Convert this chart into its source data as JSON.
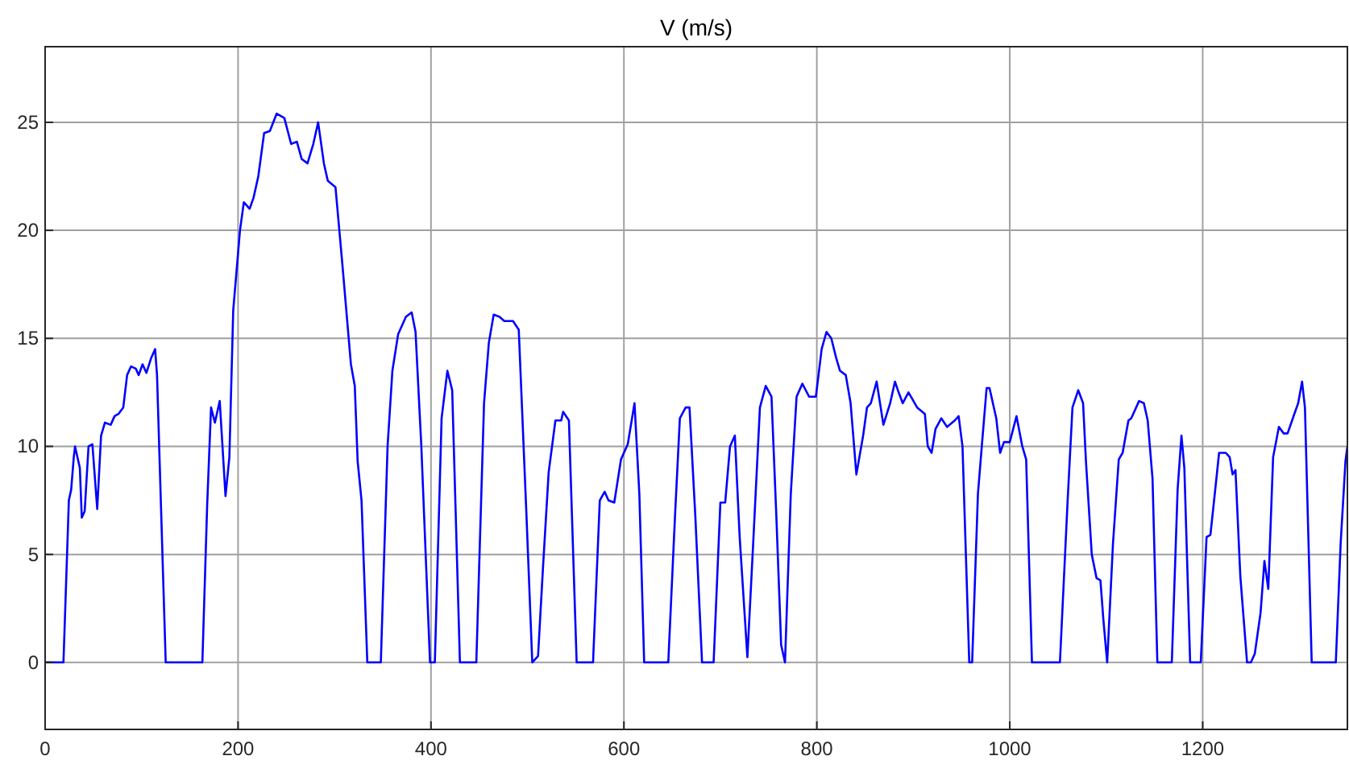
{
  "chart_data": {
    "type": "line",
    "title": "V (m/s)",
    "xlim": [
      0,
      1350
    ],
    "ylim": [
      -3.1,
      28.5
    ],
    "xticks": [
      0,
      200,
      400,
      600,
      800,
      1000,
      1200
    ],
    "yticks": [
      0,
      5,
      10,
      15,
      20,
      25
    ],
    "grid": true,
    "marker": "none",
    "line_style": "solid",
    "series": [
      {
        "color": "#0000ff",
        "x": [
          0,
          19,
          24.6,
          27,
          29.7,
          31,
          36,
          38,
          41,
          45,
          49,
          54,
          58,
          62,
          68,
          72,
          76,
          81,
          85,
          89,
          94,
          97,
          101,
          105,
          110,
          114,
          116,
          125,
          163,
          168,
          172,
          176,
          181,
          187,
          191,
          195,
          202,
          206,
          212,
          216,
          221,
          227,
          233,
          240,
          248,
          255,
          261,
          266,
          272,
          278,
          283,
          289,
          293,
          301,
          308,
          317,
          321,
          324,
          328,
          334,
          348,
          355,
          360,
          366,
          370,
          374,
          380,
          384,
          390,
          399,
          404,
          411,
          417,
          422,
          430,
          447,
          455,
          460,
          465,
          471,
          476,
          485,
          491,
          499,
          505,
          511,
          516,
          522,
          529,
          535,
          537,
          543,
          551,
          568,
          575,
          580,
          584,
          590,
          597,
          604,
          611,
          616,
          621,
          646,
          653,
          658,
          664,
          668,
          674,
          681,
          693,
          700,
          705,
          710,
          715,
          720,
          728,
          734,
          741,
          747,
          753,
          758,
          763,
          767,
          773,
          779,
          785,
          792,
          799,
          805,
          810,
          815,
          820,
          824,
          830,
          835,
          841,
          848,
          852,
          856,
          862,
          869,
          876,
          881,
          884,
          889,
          895,
          904,
          912,
          915,
          919,
          923,
          929,
          935,
          943,
          947,
          951,
          955,
          958,
          961,
          967,
          971,
          976,
          979,
          986,
          990,
          994,
          1000,
          1007,
          1013,
          1017,
          1023,
          1052,
          1060,
          1065,
          1071,
          1076,
          1079,
          1085,
          1090,
          1094,
          1097,
          1101,
          1107,
          1113,
          1117,
          1123,
          1126,
          1134,
          1139,
          1143,
          1148,
          1153,
          1168,
          1174,
          1178,
          1181,
          1187,
          1198,
          1204,
          1208,
          1213,
          1217,
          1224,
          1228,
          1231,
          1234,
          1239,
          1246,
          1250,
          1254,
          1260,
          1264,
          1268,
          1273,
          1279,
          1284,
          1288,
          1295,
          1299,
          1303,
          1306,
          1313,
          1338,
          1343,
          1348,
          1350
        ],
        "values": [
          0,
          0,
          7.5,
          8,
          9.5,
          10,
          9,
          6.7,
          7,
          10,
          10.1,
          7.1,
          10.5,
          11.1,
          11,
          11.4,
          11.5,
          11.8,
          13.3,
          13.7,
          13.6,
          13.3,
          13.8,
          13.4,
          14.1,
          14.5,
          13.3,
          0,
          0,
          7.3,
          11.8,
          11.1,
          12.1,
          7.7,
          9.5,
          16.3,
          20,
          21.3,
          21,
          21.5,
          22.5,
          24.5,
          24.6,
          25.4,
          25.2,
          24,
          24.1,
          23.3,
          23.1,
          24,
          25,
          23.1,
          22.3,
          22,
          18.5,
          13.8,
          12.8,
          9.3,
          7.5,
          0,
          0,
          10,
          13.5,
          15.2,
          15.6,
          16,
          16.2,
          15.3,
          10,
          0,
          0,
          11.3,
          13.5,
          12.6,
          0,
          0,
          12,
          14.8,
          16.1,
          16,
          15.8,
          15.8,
          15.4,
          6.8,
          0,
          0.3,
          4.3,
          8.8,
          11.2,
          11.2,
          11.6,
          11.2,
          0,
          0,
          7.5,
          7.9,
          7.5,
          7.4,
          9.4,
          10.1,
          12,
          7.8,
          0,
          0,
          6.8,
          11.3,
          11.8,
          11.8,
          6.8,
          0,
          0,
          7.4,
          7.4,
          10,
          10.5,
          5.8,
          0.25,
          5.5,
          11.8,
          12.8,
          12.3,
          6.8,
          0.8,
          0,
          7.8,
          12.3,
          12.9,
          12.3,
          12.3,
          14.5,
          15.3,
          15,
          14.1,
          13.5,
          13.3,
          12,
          8.7,
          10.5,
          11.8,
          12,
          13,
          11,
          12,
          13,
          12.6,
          12,
          12.5,
          11.8,
          11.5,
          10,
          9.7,
          10.8,
          11.3,
          10.9,
          11.2,
          11.4,
          10,
          4.3,
          0,
          0,
          7.8,
          10,
          12.7,
          12.7,
          11.3,
          9.7,
          10.2,
          10.2,
          11.4,
          10,
          9.4,
          0,
          0,
          7.5,
          11.8,
          12.6,
          12,
          9.3,
          5,
          3.9,
          3.8,
          2,
          0,
          5.5,
          9.4,
          9.7,
          11.2,
          11.3,
          12.1,
          12,
          11.2,
          8.5,
          0,
          0,
          8,
          10.5,
          9,
          0,
          0,
          5.8,
          5.9,
          8,
          9.7,
          9.7,
          9.5,
          8.7,
          8.9,
          4,
          0,
          0,
          0.4,
          2.3,
          4.7,
          3.4,
          9.5,
          10.9,
          10.6,
          10.6,
          11.5,
          12,
          13,
          11.8,
          0,
          0,
          5.5,
          9.3,
          10
        ]
      }
    ]
  }
}
